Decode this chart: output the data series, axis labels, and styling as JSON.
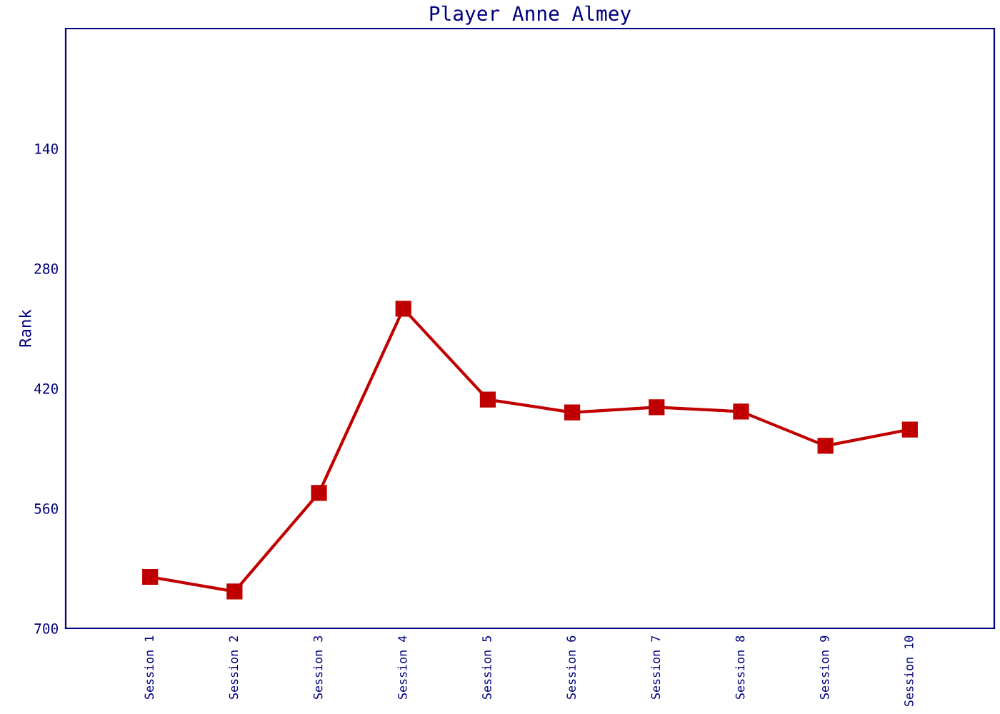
{
  "chart_data": {
    "type": "line",
    "title": "Player Anne Almey",
    "ylabel": "Rank",
    "categories": [
      "Session 1",
      "Session 2",
      "Session 3",
      "Session 4",
      "Session 5",
      "Session 6",
      "Session 7",
      "Session 8",
      "Session 9",
      "Session 10"
    ],
    "series": [
      {
        "color": "#c00000",
        "values": [
          640,
          657,
          542,
          327,
          433,
          448,
          442,
          447,
          487,
          468
        ]
      }
    ],
    "ylim": [
      700,
      0
    ],
    "yticks": [
      140,
      280,
      420,
      560,
      700
    ],
    "grid": false,
    "legend": false,
    "marker": "square",
    "line_style": "solid"
  }
}
